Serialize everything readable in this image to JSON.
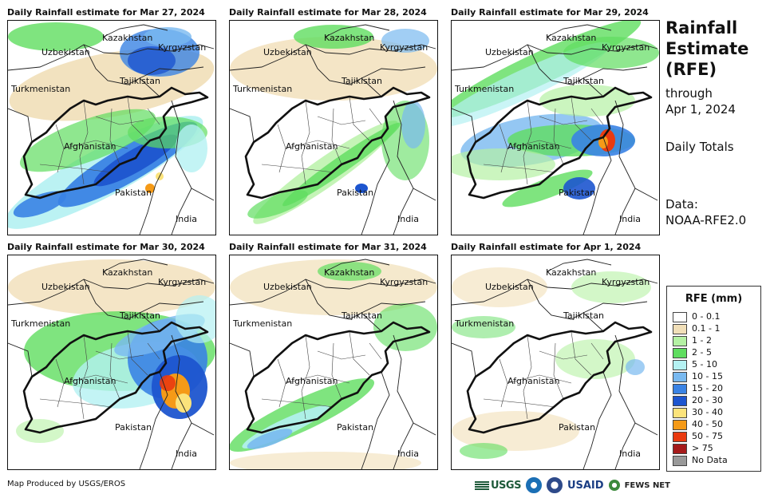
{
  "panels": [
    {
      "title": "Daily Rainfall estimate for Mar 27, 2024",
      "date": "Mar 27, 2024"
    },
    {
      "title": "Daily Rainfall estimate for Mar 28, 2024",
      "date": "Mar 28, 2024"
    },
    {
      "title": "Daily Rainfall estimate for Mar 29, 2024",
      "date": "Mar 29, 2024"
    },
    {
      "title": "Daily Rainfall estimate for Mar 30, 2024",
      "date": "Mar 30, 2024"
    },
    {
      "title": "Daily Rainfall estimate for Mar 31, 2024",
      "date": "Mar 31, 2024"
    },
    {
      "title": "Daily Rainfall estimate for Apr 1, 2024",
      "date": "Apr 1, 2024"
    }
  ],
  "country_labels": {
    "kazakhstan": "Kazakhstan",
    "kyrgyzstan": "Kyrgyzstan",
    "uzbekistan": "Uzbekistan",
    "tajikistan": "Tajikistan",
    "turkmenistan": "Turkmenistan",
    "afghanistan": "Afghanistan",
    "pakistan": "Pakistan",
    "india": "India"
  },
  "header": {
    "title": "Rainfall\nEstimate\n(RFE)",
    "through": "through\nApr 1, 2024",
    "totals": "Daily Totals",
    "data_source": "Data:\nNOAA-RFE2.0"
  },
  "legend": {
    "title": "RFE (mm)",
    "items": [
      {
        "label": "0 - 0.1",
        "color": "#ffffff"
      },
      {
        "label": "0.1 - 1",
        "color": "#f1dfb8"
      },
      {
        "label": "1 - 2",
        "color": "#b5f1a4"
      },
      {
        "label": "2 - 5",
        "color": "#5fdd5f"
      },
      {
        "label": "5 - 10",
        "color": "#b4f1f2"
      },
      {
        "label": "10 - 15",
        "color": "#79b9f0"
      },
      {
        "label": "15 - 20",
        "color": "#3a83e4"
      },
      {
        "label": "20 - 30",
        "color": "#1d55cf"
      },
      {
        "label": "30 - 40",
        "color": "#fbe37b"
      },
      {
        "label": "40 - 50",
        "color": "#f59a17"
      },
      {
        "label": "50 - 75",
        "color": "#e93a10"
      },
      {
        "label": "> 75",
        "color": "#a51a1a"
      },
      {
        "label": "No Data",
        "color": "#999999"
      }
    ]
  },
  "footer": {
    "credit": "Map Produced by USGS/EROS",
    "logos": [
      "USGS",
      "NOAA",
      "DOC",
      "USAID",
      "FEWS NET"
    ]
  }
}
